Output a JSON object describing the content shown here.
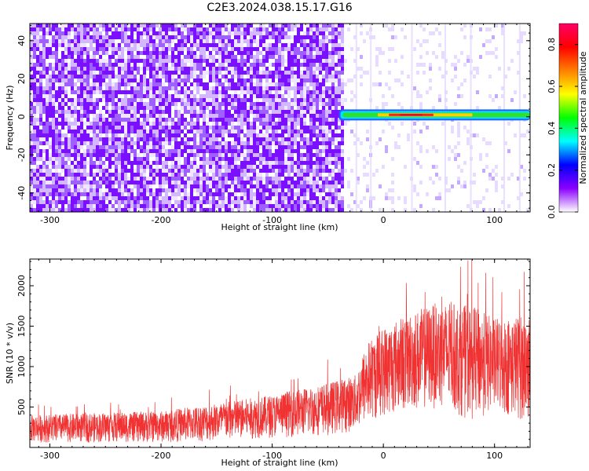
{
  "title": "C2E3.2024.038.15.17.G16",
  "chart_data": [
    {
      "type": "heatmap",
      "xlabel": "Height of straight line (km)",
      "ylabel": "Frequency (Hz)",
      "xlim": [
        -318,
        132
      ],
      "ylim": [
        -50,
        49
      ],
      "xticks": [
        -300,
        -200,
        -100,
        0,
        100
      ],
      "xtick_labels": [
        "-300",
        "-200",
        "-100",
        "0",
        "100"
      ],
      "yticks": [
        -40,
        -20,
        0,
        20,
        40
      ],
      "ytick_labels": [
        "-40",
        "-20",
        "0",
        "20",
        "40"
      ],
      "signal_band": {
        "x_start": -40,
        "x_end": 132,
        "frequency": 1
      },
      "noise_boundary_x": -38,
      "colorbar": {
        "label": "Normalized spectral amplitude",
        "range": [
          0,
          0.9
        ],
        "ticks": [
          0.0,
          0.2,
          0.4,
          0.6,
          0.8
        ],
        "tick_labels": [
          "0.0",
          "0.2",
          "0.4",
          "0.6",
          "0.8"
        ],
        "colors": [
          "#ffffff",
          "#8a00ff",
          "#0000ff",
          "#00ffff",
          "#00ff00",
          "#ffff00",
          "#ff8000",
          "#ff0000",
          "#ff0066"
        ]
      }
    },
    {
      "type": "line",
      "xlabel": "Height of straight line (km)",
      "ylabel": "SNR (10 * v/v)",
      "xlim": [
        -318,
        132
      ],
      "ylim": [
        0,
        2330
      ],
      "xticks": [
        -300,
        -200,
        -100,
        0,
        100
      ],
      "xtick_labels": [
        "-300",
        "-200",
        "-100",
        "0",
        "100"
      ],
      "yticks": [
        500,
        1000,
        1500,
        2000
      ],
      "ytick_labels": [
        "500",
        "1000",
        "1500",
        "2000"
      ],
      "series": [
        {
          "name": "SNR",
          "color": "#f03232",
          "envelope_x": [
            -318,
            -250,
            -200,
            -150,
            -100,
            -50,
            -25,
            -15,
            0,
            20,
            50,
            80,
            100,
            132
          ],
          "envelope_low": [
            60,
            60,
            60,
            80,
            120,
            150,
            200,
            300,
            380,
            450,
            480,
            330,
            420,
            300
          ],
          "envelope_high": [
            400,
            430,
            450,
            550,
            650,
            800,
            900,
            1300,
            1500,
            1650,
            1800,
            1750,
            1600,
            1650
          ]
        }
      ]
    }
  ]
}
